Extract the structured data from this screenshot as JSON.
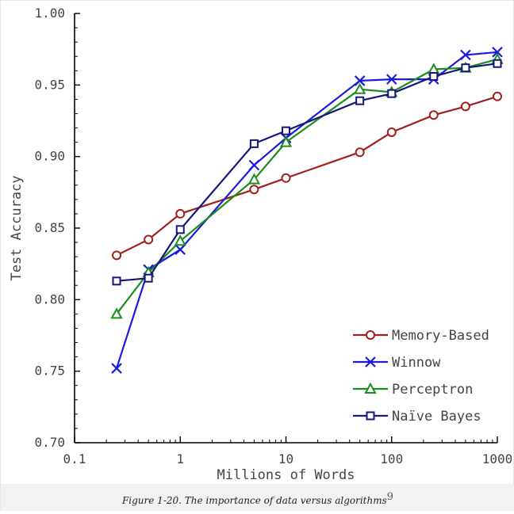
{
  "chart_data": {
    "type": "line",
    "xlabel": "Millions of Words",
    "ylabel": "Test Accuracy",
    "xscale": "log",
    "xlim": [
      0.1,
      1000
    ],
    "ylim": [
      0.7,
      1.0
    ],
    "x_tick_labels": [
      "0.1",
      "1",
      "10",
      "100",
      "1000"
    ],
    "y_tick_labels": [
      "1.00",
      "0.95",
      "0.90",
      "0.85",
      "0.80",
      "0.75",
      "0.70"
    ],
    "x_ticks": [
      0.1,
      1,
      10,
      100,
      1000
    ],
    "y_ticks": [
      1.0,
      0.95,
      0.9,
      0.85,
      0.8,
      0.75,
      0.7
    ],
    "legend_position": "bottom-right",
    "series": [
      {
        "name": "Memory-Based",
        "color": "#a01f1f",
        "marker": "circle",
        "x": [
          0.25,
          0.5,
          1,
          5,
          10,
          50,
          100,
          250,
          500,
          1000
        ],
        "y": [
          0.831,
          0.842,
          0.86,
          0.877,
          0.885,
          0.903,
          0.917,
          0.929,
          0.935,
          0.942
        ]
      },
      {
        "name": "Winnow",
        "color": "#1a1ae0",
        "marker": "x",
        "x": [
          0.25,
          0.5,
          1,
          5,
          10,
          50,
          100,
          250,
          500,
          1000
        ],
        "y": [
          0.752,
          0.821,
          0.835,
          0.894,
          0.913,
          0.953,
          0.954,
          0.954,
          0.971,
          0.973
        ]
      },
      {
        "name": "Perceptron",
        "color": "#1e8c1e",
        "marker": "triangle",
        "x": [
          0.25,
          0.5,
          1,
          5,
          10,
          50,
          100,
          250,
          500,
          1000
        ],
        "y": [
          0.79,
          0.819,
          0.841,
          0.884,
          0.91,
          0.947,
          0.945,
          0.961,
          0.962,
          0.968
        ]
      },
      {
        "name": "Naïve Bayes",
        "color": "#16167a",
        "marker": "square",
        "x": [
          0.25,
          0.5,
          1,
          5,
          10,
          50,
          100,
          250,
          500,
          1000
        ],
        "y": [
          0.813,
          0.815,
          0.849,
          0.909,
          0.918,
          0.939,
          0.944,
          0.956,
          0.962,
          0.965
        ]
      }
    ]
  },
  "caption": {
    "text": "Figure 1-20. The importance of data versus algorithms",
    "footnote": "9"
  }
}
